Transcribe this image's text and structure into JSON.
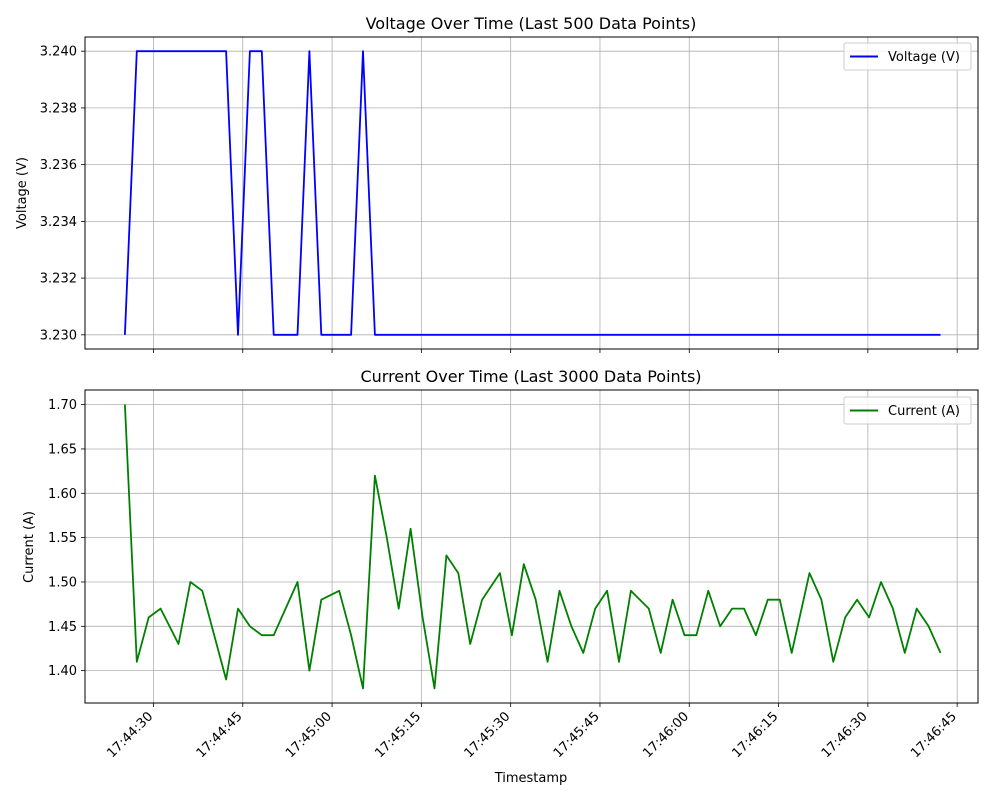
{
  "chart_data": [
    {
      "type": "line",
      "title": "Voltage Over Time (Last 500 Data Points)",
      "xlabel": "",
      "ylabel": "Voltage (V)",
      "grid": true,
      "legend_position": "top-right",
      "color": "#0000ff",
      "x_range": [
        "17:44:18.5",
        "17:46:48.5"
      ],
      "ylim": [
        3.2295,
        3.2405
      ],
      "y_ticks": [
        "3.230",
        "3.232",
        "3.234",
        "3.236",
        "3.238",
        "3.240"
      ],
      "series": [
        {
          "name": "Voltage (V)",
          "x": [
            "17:44:25.2",
            "17:44:27.2",
            "17:44:42.2",
            "17:44:44.2",
            "17:44:46.2",
            "17:44:48.2",
            "17:44:50.2",
            "17:44:54.2",
            "17:44:56.2",
            "17:44:58.2",
            "17:45:03.2",
            "17:45:05.2",
            "17:45:07.2",
            "17:46:42.2"
          ],
          "values": [
            3.23,
            3.24,
            3.24,
            3.23,
            3.24,
            3.24,
            3.23,
            3.23,
            3.24,
            3.23,
            3.23,
            3.24,
            3.23,
            3.23
          ]
        }
      ]
    },
    {
      "type": "line",
      "title": "Current Over Time (Last 3000 Data Points)",
      "xlabel": "Timestamp",
      "ylabel": "Current (A)",
      "grid": true,
      "legend_position": "top-right",
      "color": "#008000",
      "x_range": [
        "17:44:18.5",
        "17:46:48.5"
      ],
      "ylim": [
        1.3635,
        1.7165
      ],
      "y_ticks": [
        "1.40",
        "1.45",
        "1.50",
        "1.55",
        "1.60",
        "1.65",
        "1.70"
      ],
      "x_ticks": [
        "17:44:30",
        "17:44:45",
        "17:45:00",
        "17:45:15",
        "17:45:30",
        "17:45:45",
        "17:46:00",
        "17:46:15",
        "17:46:30",
        "17:46:45"
      ],
      "series": [
        {
          "name": "Current (A)",
          "x": [
            "17:44:25.2",
            "17:44:27.2",
            "17:44:29.2",
            "17:44:31.2",
            "17:44:34.2",
            "17:44:36.2",
            "17:44:38.2",
            "17:44:42.2",
            "17:44:44.2",
            "17:44:46.2",
            "17:44:48.2",
            "17:44:50.2",
            "17:44:54.2",
            "17:44:56.2",
            "17:44:58.2",
            "17:45:01.2",
            "17:45:03.2",
            "17:45:05.2",
            "17:45:07.2",
            "17:45:09.2",
            "17:45:11.2",
            "17:45:13.2",
            "17:45:15.2",
            "17:45:17.2",
            "17:45:19.2",
            "17:45:21.2",
            "17:45:23.2",
            "17:45:25.2",
            "17:45:28.2",
            "17:45:30.2",
            "17:45:32.2",
            "17:45:34.2",
            "17:45:36.2",
            "17:45:38.2",
            "17:45:40.2",
            "17:45:42.2",
            "17:45:44.2",
            "17:45:46.2",
            "17:45:48.2",
            "17:45:50.2",
            "17:45:53.2",
            "17:45:55.2",
            "17:45:57.2",
            "17:45:59.2",
            "17:46:01.2",
            "17:46:03.2",
            "17:46:05.2",
            "17:46:07.2",
            "17:46:09.2",
            "17:46:11.2",
            "17:46:13.2",
            "17:46:15.2",
            "17:46:17.2",
            "17:46:20.2",
            "17:46:22.2",
            "17:46:24.2",
            "17:46:26.2",
            "17:46:28.2",
            "17:46:30.2",
            "17:46:32.2",
            "17:46:34.2",
            "17:46:36.2",
            "17:46:38.2",
            "17:46:40.2",
            "17:46:42.2"
          ],
          "values": [
            1.7,
            1.41,
            1.46,
            1.47,
            1.43,
            1.5,
            1.49,
            1.39,
            1.47,
            1.45,
            1.44,
            1.44,
            1.5,
            1.4,
            1.48,
            1.49,
            1.44,
            1.38,
            1.62,
            1.55,
            1.47,
            1.56,
            1.46,
            1.38,
            1.53,
            1.51,
            1.43,
            1.48,
            1.51,
            1.44,
            1.52,
            1.48,
            1.41,
            1.49,
            1.45,
            1.42,
            1.47,
            1.49,
            1.41,
            1.49,
            1.47,
            1.42,
            1.48,
            1.44,
            1.44,
            1.49,
            1.45,
            1.47,
            1.47,
            1.44,
            1.48,
            1.48,
            1.42,
            1.51,
            1.48,
            1.41,
            1.46,
            1.48,
            1.46,
            1.5,
            1.47,
            1.42,
            1.47,
            1.45,
            1.42
          ]
        }
      ]
    }
  ]
}
